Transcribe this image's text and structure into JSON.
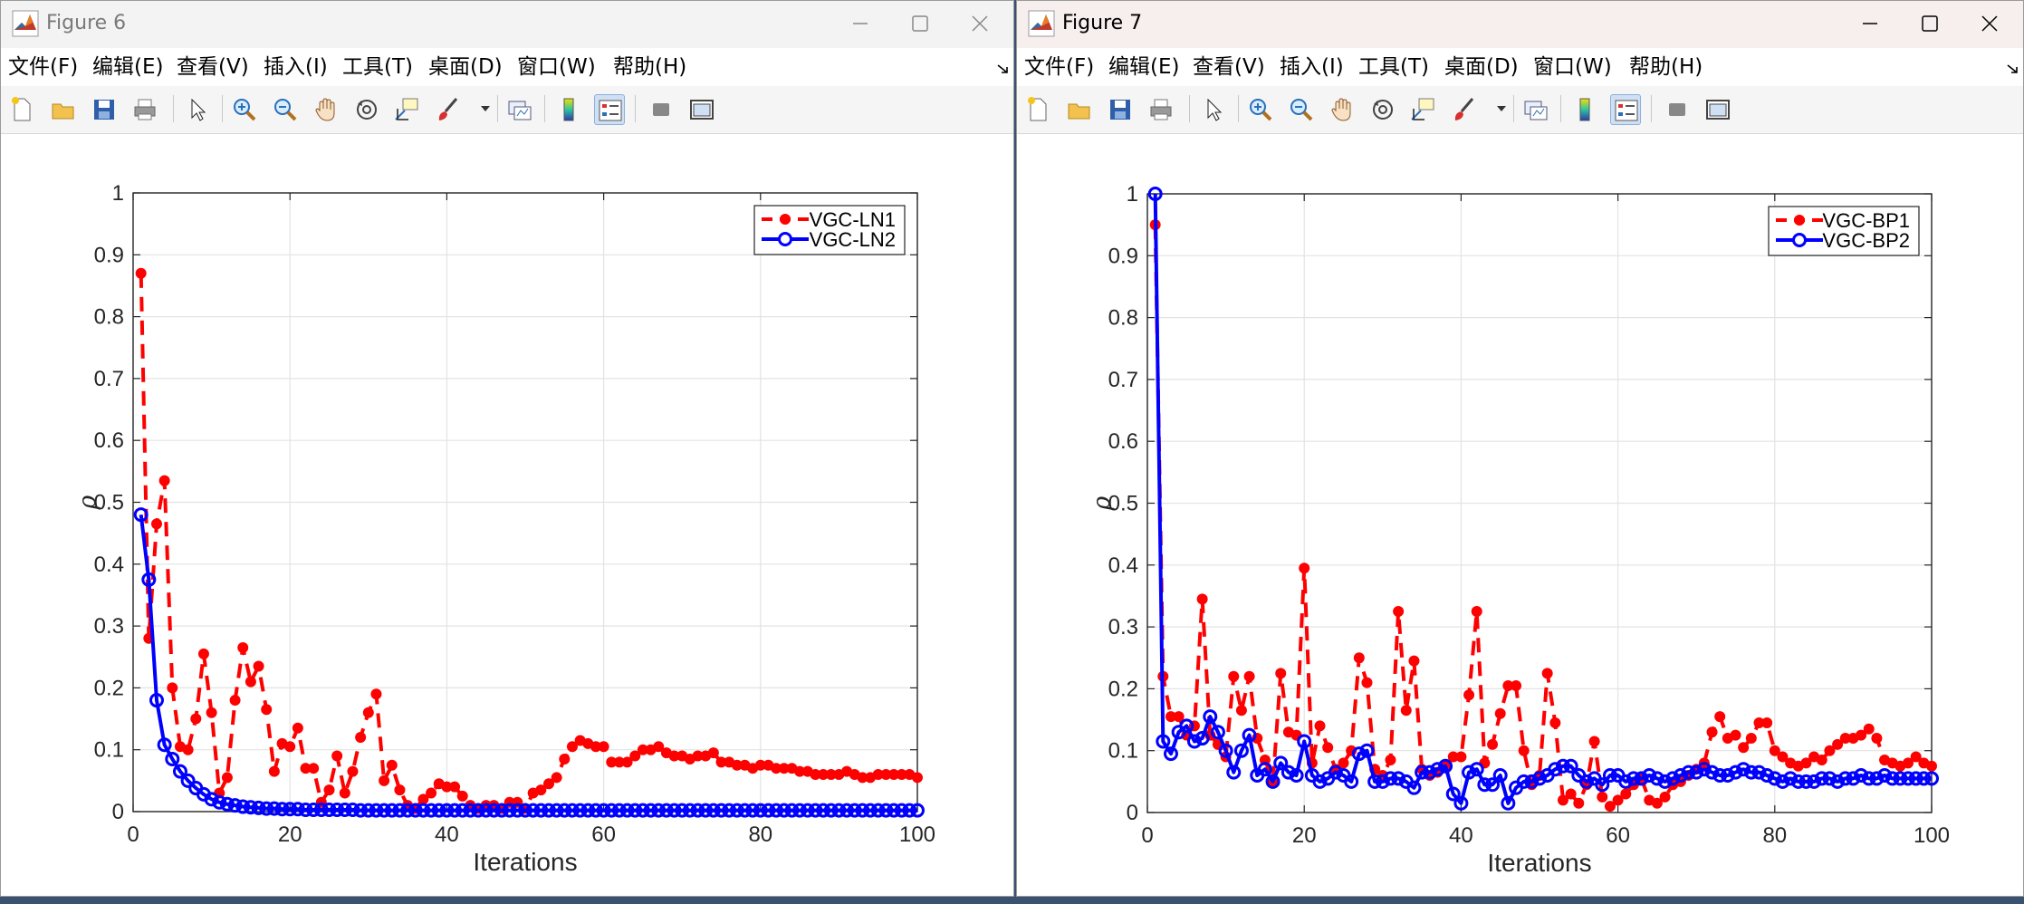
{
  "windows": [
    {
      "title": "Figure 6",
      "menu": [
        "文件(F)",
        "编辑(E)",
        "查看(V)",
        "插入(I)",
        "工具(T)",
        "桌面(D)",
        "窗口(W)",
        "帮助(H)"
      ],
      "chart_data": {
        "type": "line",
        "xlabel": "Iterations",
        "ylabel": "ρ",
        "xlim": [
          0,
          100
        ],
        "ylim": [
          0,
          1
        ],
        "xticks": [
          "0",
          "20",
          "40",
          "60",
          "80",
          "100"
        ],
        "yticks": [
          "0",
          "0.1",
          "0.2",
          "0.3",
          "0.4",
          "0.5",
          "0.6",
          "0.7",
          "0.8",
          "0.9",
          "1"
        ],
        "grid": true,
        "legend_position": "top-right",
        "series": [
          {
            "name": "VGC-LN1",
            "color": "#ff0000",
            "style": "dashed",
            "marker": "filled-circle",
            "values": [
              0.87,
              0.28,
              0.465,
              0.535,
              0.2,
              0.105,
              0.1,
              0.15,
              0.255,
              0.16,
              0.03,
              0.055,
              0.18,
              0.265,
              0.21,
              0.235,
              0.165,
              0.065,
              0.11,
              0.105,
              0.135,
              0.07,
              0.07,
              0.015,
              0.035,
              0.09,
              0.03,
              0.065,
              0.12,
              0.16,
              0.19,
              0.05,
              0.075,
              0.035,
              0.01,
              0.005,
              0.02,
              0.03,
              0.045,
              0.04,
              0.04,
              0.025,
              0.01,
              0.005,
              0.01,
              0.01,
              0.005,
              0.015,
              0.015,
              0.005,
              0.03,
              0.035,
              0.045,
              0.055,
              0.085,
              0.105,
              0.115,
              0.11,
              0.105,
              0.105,
              0.08,
              0.08,
              0.08,
              0.09,
              0.1,
              0.1,
              0.105,
              0.095,
              0.09,
              0.09,
              0.085,
              0.09,
              0.09,
              0.095,
              0.08,
              0.08,
              0.075,
              0.075,
              0.07,
              0.075,
              0.075,
              0.07,
              0.07,
              0.07,
              0.065,
              0.065,
              0.06,
              0.06,
              0.06,
              0.06,
              0.065,
              0.06,
              0.055,
              0.055,
              0.06,
              0.06,
              0.06,
              0.06,
              0.06,
              0.055
            ]
          },
          {
            "name": "VGC-LN2",
            "color": "#0000ff",
            "style": "solid",
            "marker": "open-circle",
            "values": [
              0.48,
              0.375,
              0.18,
              0.108,
              0.085,
              0.065,
              0.05,
              0.038,
              0.028,
              0.02,
              0.015,
              0.012,
              0.01,
              0.008,
              0.007,
              0.006,
              0.005,
              0.005,
              0.004,
              0.004,
              0.004,
              0.003,
              0.003,
              0.003,
              0.003,
              0.003,
              0.003,
              0.003,
              0.002,
              0.002,
              0.002,
              0.002,
              0.002,
              0.002,
              0.002,
              0.002,
              0.002,
              0.002,
              0.002,
              0.002,
              0.002,
              0.002,
              0.002,
              0.002,
              0.002,
              0.002,
              0.002,
              0.002,
              0.002,
              0.002,
              0.002,
              0.002,
              0.002,
              0.002,
              0.002,
              0.002,
              0.002,
              0.002,
              0.002,
              0.002,
              0.002,
              0.002,
              0.002,
              0.002,
              0.002,
              0.002,
              0.002,
              0.002,
              0.002,
              0.002,
              0.002,
              0.002,
              0.002,
              0.002,
              0.002,
              0.002,
              0.002,
              0.002,
              0.002,
              0.002,
              0.002,
              0.002,
              0.002,
              0.002,
              0.002,
              0.002,
              0.002,
              0.002,
              0.002,
              0.002,
              0.002,
              0.002,
              0.002,
              0.002,
              0.002,
              0.002,
              0.002,
              0.002,
              0.002,
              0.002
            ]
          }
        ]
      }
    },
    {
      "title": "Figure 7",
      "menu": [
        "文件(F)",
        "编辑(E)",
        "查看(V)",
        "插入(I)",
        "工具(T)",
        "桌面(D)",
        "窗口(W)",
        "帮助(H)"
      ],
      "chart_data": {
        "type": "line",
        "xlabel": "Iterations",
        "ylabel": "ρ",
        "xlim": [
          0,
          100
        ],
        "ylim": [
          0,
          1
        ],
        "xticks": [
          "0",
          "20",
          "40",
          "60",
          "80",
          "100"
        ],
        "yticks": [
          "0",
          "0.1",
          "0.2",
          "0.3",
          "0.4",
          "0.5",
          "0.6",
          "0.7",
          "0.8",
          "0.9",
          "1"
        ],
        "grid": true,
        "legend_position": "top-right",
        "series": [
          {
            "name": "VGC-BP1",
            "color": "#ff0000",
            "style": "dashed",
            "marker": "filled-circle",
            "values": [
              0.95,
              0.22,
              0.155,
              0.155,
              0.125,
              0.14,
              0.345,
              0.125,
              0.11,
              0.09,
              0.22,
              0.165,
              0.22,
              0.12,
              0.085,
              0.05,
              0.225,
              0.13,
              0.125,
              0.395,
              0.08,
              0.14,
              0.105,
              0.07,
              0.08,
              0.1,
              0.25,
              0.21,
              0.07,
              0.06,
              0.085,
              0.325,
              0.165,
              0.245,
              0.07,
              0.06,
              0.065,
              0.075,
              0.09,
              0.09,
              0.19,
              0.325,
              0.08,
              0.11,
              0.16,
              0.205,
              0.205,
              0.1,
              0.045,
              0.06,
              0.225,
              0.145,
              0.02,
              0.03,
              0.015,
              0.045,
              0.115,
              0.025,
              0.01,
              0.02,
              0.03,
              0.045,
              0.055,
              0.02,
              0.015,
              0.025,
              0.045,
              0.05,
              0.06,
              0.07,
              0.08,
              0.13,
              0.155,
              0.12,
              0.125,
              0.105,
              0.12,
              0.145,
              0.145,
              0.1,
              0.09,
              0.08,
              0.075,
              0.08,
              0.09,
              0.085,
              0.1,
              0.11,
              0.12,
              0.12,
              0.125,
              0.135,
              0.12,
              0.085,
              0.08,
              0.075,
              0.08,
              0.09,
              0.08,
              0.075
            ]
          },
          {
            "name": "VGC-BP2",
            "color": "#0000ff",
            "style": "solid",
            "marker": "open-circle",
            "values": [
              1.0,
              0.115,
              0.095,
              0.13,
              0.14,
              0.115,
              0.12,
              0.155,
              0.13,
              0.1,
              0.065,
              0.1,
              0.125,
              0.06,
              0.07,
              0.05,
              0.08,
              0.065,
              0.06,
              0.115,
              0.06,
              0.05,
              0.055,
              0.065,
              0.06,
              0.05,
              0.095,
              0.1,
              0.05,
              0.05,
              0.055,
              0.055,
              0.05,
              0.04,
              0.065,
              0.065,
              0.07,
              0.075,
              0.03,
              0.015,
              0.065,
              0.07,
              0.045,
              0.045,
              0.06,
              0.015,
              0.04,
              0.05,
              0.05,
              0.055,
              0.06,
              0.07,
              0.075,
              0.075,
              0.06,
              0.05,
              0.055,
              0.045,
              0.06,
              0.06,
              0.05,
              0.055,
              0.055,
              0.06,
              0.055,
              0.05,
              0.055,
              0.06,
              0.065,
              0.065,
              0.07,
              0.065,
              0.06,
              0.06,
              0.065,
              0.07,
              0.065,
              0.065,
              0.06,
              0.055,
              0.05,
              0.055,
              0.05,
              0.05,
              0.05,
              0.055,
              0.055,
              0.05,
              0.055,
              0.055,
              0.06,
              0.055,
              0.055,
              0.06,
              0.055,
              0.055,
              0.055,
              0.055,
              0.055,
              0.055
            ]
          }
        ]
      }
    }
  ]
}
